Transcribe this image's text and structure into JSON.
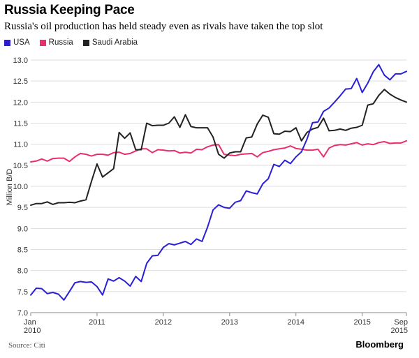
{
  "title": "Russia Keeping Pace",
  "subtitle": "Russia's oil production has held steady even as rivals have taken the top slot",
  "source": "Source: Citi",
  "brand": "Bloomberg",
  "colors": {
    "usa": "#2b1fd6",
    "russia": "#e8306a",
    "saudi": "#222222",
    "grid": "#dddddd"
  },
  "chart_data": {
    "type": "line",
    "ylabel": "Million B/D",
    "ylim": [
      7.0,
      13.0
    ],
    "yticks": [
      "7.0",
      "7.5",
      "8.0",
      "8.5",
      "9.0",
      "9.5",
      "10.0",
      "10.5",
      "11.0",
      "11.5",
      "12.0",
      "12.5",
      "13.0"
    ],
    "xlim": [
      "2010-01",
      "2015-09"
    ],
    "xticks": [
      {
        "date": "2010-01",
        "line1": "Jan",
        "line2": "2010"
      },
      {
        "date": "2011-01",
        "line1": "2011",
        "line2": ""
      },
      {
        "date": "2012-01",
        "line1": "2012",
        "line2": ""
      },
      {
        "date": "2013-01",
        "line1": "2013",
        "line2": ""
      },
      {
        "date": "2014-01",
        "line1": "2014",
        "line2": ""
      },
      {
        "date": "2015-01",
        "line1": "2015",
        "line2": ""
      },
      {
        "date": "2015-09",
        "line1": "Sep",
        "line2": "2015"
      }
    ],
    "grid": true,
    "legend_position": "top-left",
    "x": [
      "2010-01",
      "2010-02",
      "2010-03",
      "2010-04",
      "2010-05",
      "2010-06",
      "2010-07",
      "2010-08",
      "2010-09",
      "2010-10",
      "2010-11",
      "2010-12",
      "2011-01",
      "2011-02",
      "2011-03",
      "2011-04",
      "2011-05",
      "2011-06",
      "2011-07",
      "2011-08",
      "2011-09",
      "2011-10",
      "2011-11",
      "2011-12",
      "2012-01",
      "2012-02",
      "2012-03",
      "2012-04",
      "2012-05",
      "2012-06",
      "2012-07",
      "2012-08",
      "2012-09",
      "2012-10",
      "2012-11",
      "2012-12",
      "2013-01",
      "2013-02",
      "2013-03",
      "2013-04",
      "2013-05",
      "2013-06",
      "2013-07",
      "2013-08",
      "2013-09",
      "2013-10",
      "2013-11",
      "2013-12",
      "2014-01",
      "2014-02",
      "2014-03",
      "2014-04",
      "2014-05",
      "2014-06",
      "2014-07",
      "2014-08",
      "2014-09",
      "2014-10",
      "2014-11",
      "2014-12",
      "2015-01",
      "2015-02",
      "2015-03",
      "2015-04",
      "2015-05",
      "2015-06",
      "2015-07",
      "2015-08",
      "2015-09"
    ],
    "series": [
      {
        "name": "USA",
        "color": "#2b1fd6",
        "values": [
          7.42,
          7.58,
          7.57,
          7.45,
          7.48,
          7.44,
          7.3,
          7.5,
          7.71,
          7.74,
          7.72,
          7.73,
          7.62,
          7.42,
          7.8,
          7.75,
          7.83,
          7.75,
          7.63,
          7.86,
          7.74,
          8.17,
          8.35,
          8.36,
          8.55,
          8.64,
          8.61,
          8.65,
          8.69,
          8.62,
          8.75,
          8.69,
          9.03,
          9.44,
          9.56,
          9.5,
          9.48,
          9.62,
          9.66,
          9.89,
          9.85,
          9.82,
          10.06,
          10.18,
          10.52,
          10.47,
          10.62,
          10.54,
          10.7,
          10.82,
          11.12,
          11.51,
          11.53,
          11.78,
          11.86,
          12.0,
          12.15,
          12.31,
          12.32,
          12.56,
          12.23,
          12.45,
          12.72,
          12.89,
          12.64,
          12.53,
          12.67,
          12.67,
          12.73
        ]
      },
      {
        "name": "Russia",
        "color": "#e8306a",
        "values": [
          10.58,
          10.6,
          10.65,
          10.6,
          10.66,
          10.67,
          10.67,
          10.59,
          10.7,
          10.78,
          10.76,
          10.72,
          10.76,
          10.76,
          10.74,
          10.8,
          10.81,
          10.76,
          10.78,
          10.84,
          10.89,
          10.89,
          10.8,
          10.87,
          10.86,
          10.84,
          10.85,
          10.79,
          10.81,
          10.79,
          10.88,
          10.87,
          10.94,
          10.98,
          10.99,
          10.76,
          10.74,
          10.73,
          10.76,
          10.77,
          10.78,
          10.7,
          10.8,
          10.83,
          10.87,
          10.89,
          10.91,
          10.96,
          10.9,
          10.88,
          10.86,
          10.86,
          10.88,
          10.7,
          10.91,
          10.97,
          10.99,
          10.98,
          11.01,
          11.04,
          10.98,
          11.01,
          10.99,
          11.04,
          11.06,
          11.02,
          11.03,
          11.03,
          11.08
        ]
      },
      {
        "name": "Saudi Arabia",
        "color": "#222222",
        "values": [
          9.55,
          9.59,
          9.59,
          9.63,
          9.57,
          9.61,
          9.61,
          9.62,
          9.61,
          9.65,
          9.68,
          10.12,
          10.53,
          10.22,
          10.32,
          10.42,
          11.28,
          11.14,
          11.27,
          10.87,
          10.87,
          11.5,
          11.44,
          11.45,
          11.45,
          11.5,
          11.65,
          11.4,
          11.7,
          11.42,
          11.39,
          11.39,
          11.39,
          11.17,
          10.76,
          10.67,
          10.79,
          10.82,
          10.82,
          11.15,
          11.17,
          11.48,
          11.69,
          11.64,
          11.25,
          11.24,
          11.31,
          11.3,
          11.39,
          11.08,
          11.28,
          11.36,
          11.4,
          11.62,
          11.32,
          11.33,
          11.36,
          11.33,
          11.38,
          11.4,
          11.45,
          11.93,
          11.96,
          12.16,
          12.3,
          12.19,
          12.11,
          12.05,
          12.0
        ]
      }
    ]
  }
}
